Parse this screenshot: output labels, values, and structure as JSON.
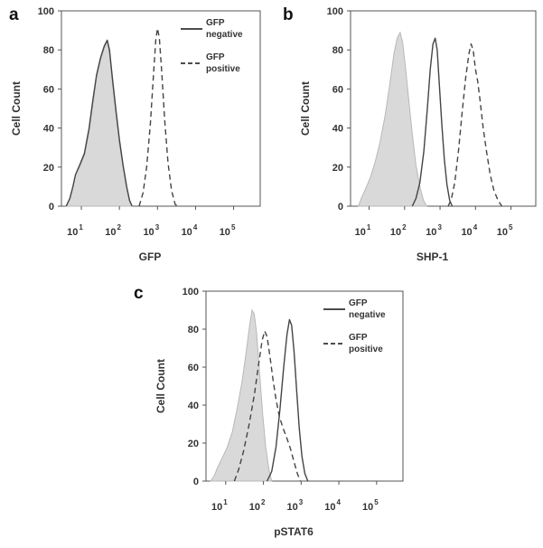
{
  "chart_data": [
    {
      "panel": "a",
      "type": "line",
      "xlabel": "GFP",
      "ylabel": "Cell Count",
      "xscale": "log",
      "xlim": [
        3,
        500000
      ],
      "ylim": [
        0,
        100
      ],
      "yticks": [
        0,
        20,
        40,
        60,
        80,
        100
      ],
      "xtick_bases": [
        "10",
        "10",
        "10",
        "10",
        "10"
      ],
      "xtick_exps": [
        "1",
        "2",
        "3",
        "4",
        "5"
      ],
      "xticks": [
        10,
        100,
        1000,
        10000,
        100000
      ],
      "legend": {
        "placement": "top-right",
        "entries": [
          {
            "line1": "GFP",
            "line2": "negative",
            "style": "solid"
          },
          {
            "line1": "GFP",
            "line2": "positive",
            "style": "dashed"
          }
        ]
      },
      "series": [
        {
          "style": "filled",
          "color": "#d9d9d9",
          "points": [
            [
              4,
              0
            ],
            [
              5,
              4
            ],
            [
              6,
              10
            ],
            [
              7,
              16
            ],
            [
              9,
              20
            ],
            [
              12,
              26
            ],
            [
              16,
              38
            ],
            [
              20,
              52
            ],
            [
              25,
              66
            ],
            [
              32,
              75
            ],
            [
              40,
              81
            ],
            [
              48,
              84
            ],
            [
              55,
              78
            ],
            [
              65,
              64
            ],
            [
              80,
              48
            ],
            [
              100,
              32
            ],
            [
              125,
              20
            ],
            [
              155,
              9
            ],
            [
              185,
              2
            ],
            [
              215,
              0
            ]
          ]
        },
        {
          "style": "solid",
          "color": "#444444",
          "points": [
            [
              4,
              0
            ],
            [
              5,
              4
            ],
            [
              6,
              10
            ],
            [
              7,
              16
            ],
            [
              9,
              21
            ],
            [
              12,
              27
            ],
            [
              16,
              40
            ],
            [
              20,
              54
            ],
            [
              25,
              67
            ],
            [
              32,
              76
            ],
            [
              40,
              82
            ],
            [
              48,
              85
            ],
            [
              55,
              80
            ],
            [
              65,
              66
            ],
            [
              80,
              50
            ],
            [
              100,
              34
            ],
            [
              125,
              21
            ],
            [
              155,
              10
            ],
            [
              185,
              3
            ],
            [
              215,
              0
            ]
          ]
        },
        {
          "style": "dashed",
          "color": "#444444",
          "points": [
            [
              330,
              0
            ],
            [
              420,
              7
            ],
            [
              520,
              20
            ],
            [
              650,
              42
            ],
            [
              780,
              66
            ],
            [
              900,
              85
            ],
            [
              1000,
              91
            ],
            [
              1120,
              86
            ],
            [
              1300,
              68
            ],
            [
              1550,
              44
            ],
            [
              1900,
              22
            ],
            [
              2350,
              8
            ],
            [
              2900,
              1
            ],
            [
              3300,
              0
            ]
          ]
        }
      ]
    },
    {
      "panel": "b",
      "type": "line",
      "xlabel": "SHP-1",
      "ylabel": "Cell Count",
      "xscale": "log",
      "xlim": [
        3,
        500000
      ],
      "ylim": [
        0,
        100
      ],
      "yticks": [
        0,
        20,
        40,
        60,
        80,
        100
      ],
      "xtick_bases": [
        "10",
        "10",
        "10",
        "10",
        "10"
      ],
      "xtick_exps": [
        "1",
        "2",
        "3",
        "4",
        "5"
      ],
      "xticks": [
        10,
        100,
        1000,
        10000,
        100000
      ],
      "series": [
        {
          "style": "filled",
          "color": "#d9d9d9",
          "points": [
            [
              5,
              0
            ],
            [
              6,
              4
            ],
            [
              8,
              9
            ],
            [
              11,
              15
            ],
            [
              15,
              23
            ],
            [
              20,
              32
            ],
            [
              28,
              46
            ],
            [
              38,
              62
            ],
            [
              50,
              78
            ],
            [
              62,
              86
            ],
            [
              75,
              89
            ],
            [
              88,
              84
            ],
            [
              105,
              72
            ],
            [
              130,
              55
            ],
            [
              165,
              37
            ],
            [
              210,
              21
            ],
            [
              270,
              10
            ],
            [
              340,
              3
            ],
            [
              420,
              0
            ]
          ]
        },
        {
          "style": "solid",
          "color": "#444444",
          "points": [
            [
              165,
              0
            ],
            [
              210,
              4
            ],
            [
              270,
              12
            ],
            [
              350,
              28
            ],
            [
              440,
              50
            ],
            [
              530,
              70
            ],
            [
              630,
              83
            ],
            [
              730,
              86
            ],
            [
              830,
              80
            ],
            [
              960,
              62
            ],
            [
              1120,
              42
            ],
            [
              1320,
              24
            ],
            [
              1570,
              11
            ],
            [
              1870,
              3
            ],
            [
              2200,
              0
            ]
          ]
        },
        {
          "style": "dashed",
          "color": "#444444",
          "points": [
            [
              1700,
              0
            ],
            [
              2100,
              4
            ],
            [
              2600,
              12
            ],
            [
              3300,
              28
            ],
            [
              4200,
              48
            ],
            [
              5300,
              66
            ],
            [
              6500,
              78
            ],
            [
              7500,
              83
            ],
            [
              8600,
              80
            ],
            [
              10000,
              70
            ],
            [
              11500,
              64
            ],
            [
              13500,
              54
            ],
            [
              16500,
              40
            ],
            [
              20500,
              28
            ],
            [
              26000,
              16
            ],
            [
              33000,
              8
            ],
            [
              43000,
              3
            ],
            [
              55000,
              0
            ]
          ]
        }
      ]
    },
    {
      "panel": "c",
      "type": "line",
      "xlabel": "pSTAT6",
      "ylabel": "Cell Count",
      "xscale": "log",
      "xlim": [
        3,
        500000
      ],
      "ylim": [
        0,
        100
      ],
      "yticks": [
        0,
        20,
        40,
        60,
        80,
        100
      ],
      "xtick_bases": [
        "10",
        "10",
        "10",
        "10",
        "10"
      ],
      "xtick_exps": [
        "1",
        "2",
        "3",
        "4",
        "5"
      ],
      "xticks": [
        10,
        100,
        1000,
        10000,
        100000
      ],
      "legend": {
        "placement": "top-right",
        "entries": [
          {
            "line1": "GFP",
            "line2": "negative",
            "style": "solid"
          },
          {
            "line1": "GFP",
            "line2": "positive",
            "style": "dashed"
          }
        ]
      },
      "series": [
        {
          "style": "filled",
          "color": "#d9d9d9",
          "points": [
            [
              4,
              0
            ],
            [
              5,
              3
            ],
            [
              6,
              7
            ],
            [
              8,
              12
            ],
            [
              11,
              18
            ],
            [
              15,
              26
            ],
            [
              20,
              38
            ],
            [
              27,
              52
            ],
            [
              35,
              68
            ],
            [
              43,
              82
            ],
            [
              50,
              90
            ],
            [
              57,
              88
            ],
            [
              66,
              78
            ],
            [
              80,
              56
            ],
            [
              95,
              36
            ],
            [
              115,
              18
            ],
            [
              140,
              6
            ],
            [
              165,
              0
            ]
          ]
        },
        {
          "style": "dashed",
          "color": "#444444",
          "points": [
            [
              17,
              0
            ],
            [
              22,
              6
            ],
            [
              30,
              16
            ],
            [
              42,
              30
            ],
            [
              58,
              46
            ],
            [
              75,
              62
            ],
            [
              92,
              74
            ],
            [
              108,
              79
            ],
            [
              125,
              76
            ],
            [
              148,
              66
            ],
            [
              178,
              54
            ],
            [
              215,
              43
            ],
            [
              265,
              34
            ],
            [
              330,
              28
            ],
            [
              410,
              23
            ],
            [
              520,
              17
            ],
            [
              650,
              10
            ],
            [
              790,
              4
            ],
            [
              950,
              0
            ]
          ]
        },
        {
          "style": "solid",
          "color": "#444444",
          "points": [
            [
              125,
              0
            ],
            [
              165,
              5
            ],
            [
              215,
              18
            ],
            [
              275,
              38
            ],
            [
              345,
              60
            ],
            [
              420,
              77
            ],
            [
              490,
              85
            ],
            [
              560,
              82
            ],
            [
              650,
              68
            ],
            [
              760,
              48
            ],
            [
              890,
              28
            ],
            [
              1050,
              13
            ],
            [
              1250,
              4
            ],
            [
              1500,
              0
            ]
          ]
        }
      ]
    }
  ]
}
